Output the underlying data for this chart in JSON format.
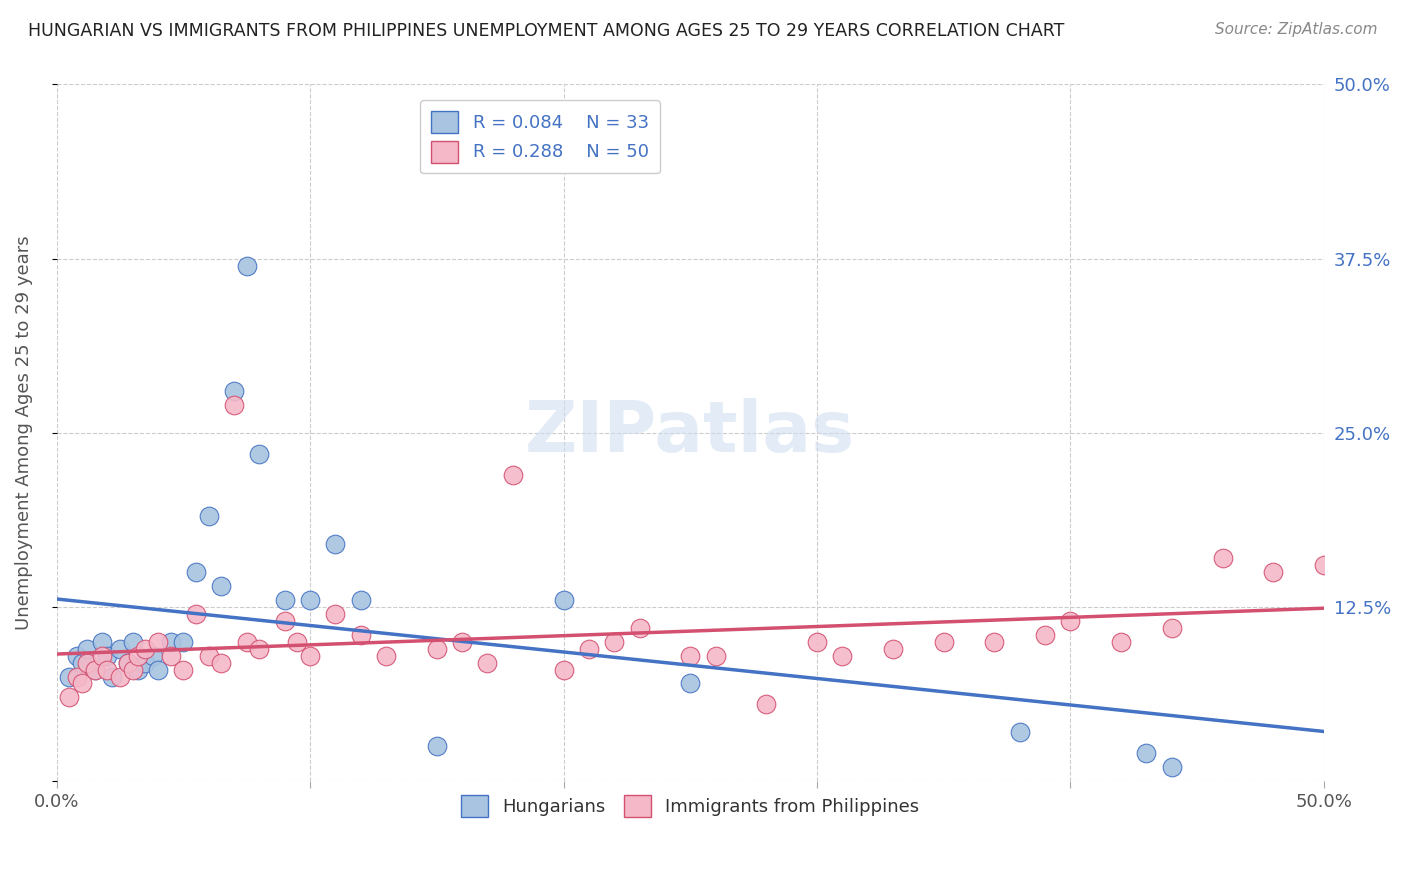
{
  "title": "HUNGARIAN VS IMMIGRANTS FROM PHILIPPINES UNEMPLOYMENT AMONG AGES 25 TO 29 YEARS CORRELATION CHART",
  "source": "Source: ZipAtlas.com",
  "ylabel": "Unemployment Among Ages 25 to 29 years",
  "xlim": [
    0.0,
    0.5
  ],
  "ylim": [
    0.0,
    0.5
  ],
  "R_hungarian": 0.084,
  "N_hungarian": 33,
  "R_philippines": 0.288,
  "N_philippines": 50,
  "color_hungarian": "#a8c4e0",
  "color_philippines": "#f4b8c8",
  "color_line_hungarian": "#4472c4",
  "color_line_philippines": "#d45070",
  "color_axis_right": "#4472c4",
  "background_color": "#ffffff",
  "grid_color": "#cccccc",
  "hungarian_x": [
    0.005,
    0.008,
    0.01,
    0.012,
    0.015,
    0.018,
    0.02,
    0.022,
    0.025,
    0.028,
    0.03,
    0.032,
    0.035,
    0.038,
    0.04,
    0.045,
    0.05,
    0.055,
    0.06,
    0.065,
    0.07,
    0.075,
    0.08,
    0.09,
    0.1,
    0.11,
    0.12,
    0.15,
    0.2,
    0.25,
    0.38,
    0.43,
    0.44
  ],
  "hungarian_y": [
    0.075,
    0.09,
    0.085,
    0.095,
    0.08,
    0.1,
    0.09,
    0.075,
    0.095,
    0.085,
    0.1,
    0.08,
    0.085,
    0.09,
    0.08,
    0.1,
    0.1,
    0.15,
    0.19,
    0.14,
    0.28,
    0.37,
    0.235,
    0.13,
    0.13,
    0.17,
    0.13,
    0.025,
    0.13,
    0.07,
    0.035,
    0.02,
    0.01
  ],
  "philippines_x": [
    0.005,
    0.008,
    0.01,
    0.012,
    0.015,
    0.018,
    0.02,
    0.025,
    0.028,
    0.03,
    0.032,
    0.035,
    0.04,
    0.045,
    0.05,
    0.055,
    0.06,
    0.065,
    0.07,
    0.075,
    0.08,
    0.09,
    0.095,
    0.1,
    0.11,
    0.12,
    0.13,
    0.15,
    0.16,
    0.17,
    0.18,
    0.2,
    0.21,
    0.22,
    0.23,
    0.25,
    0.26,
    0.28,
    0.3,
    0.31,
    0.33,
    0.35,
    0.37,
    0.39,
    0.4,
    0.42,
    0.44,
    0.46,
    0.48,
    0.5
  ],
  "philippines_y": [
    0.06,
    0.075,
    0.07,
    0.085,
    0.08,
    0.09,
    0.08,
    0.075,
    0.085,
    0.08,
    0.09,
    0.095,
    0.1,
    0.09,
    0.08,
    0.12,
    0.09,
    0.085,
    0.27,
    0.1,
    0.095,
    0.115,
    0.1,
    0.09,
    0.12,
    0.105,
    0.09,
    0.095,
    0.1,
    0.085,
    0.22,
    0.08,
    0.095,
    0.1,
    0.11,
    0.09,
    0.09,
    0.055,
    0.1,
    0.09,
    0.095,
    0.1,
    0.1,
    0.105,
    0.115,
    0.1,
    0.11,
    0.16,
    0.15,
    0.155
  ]
}
